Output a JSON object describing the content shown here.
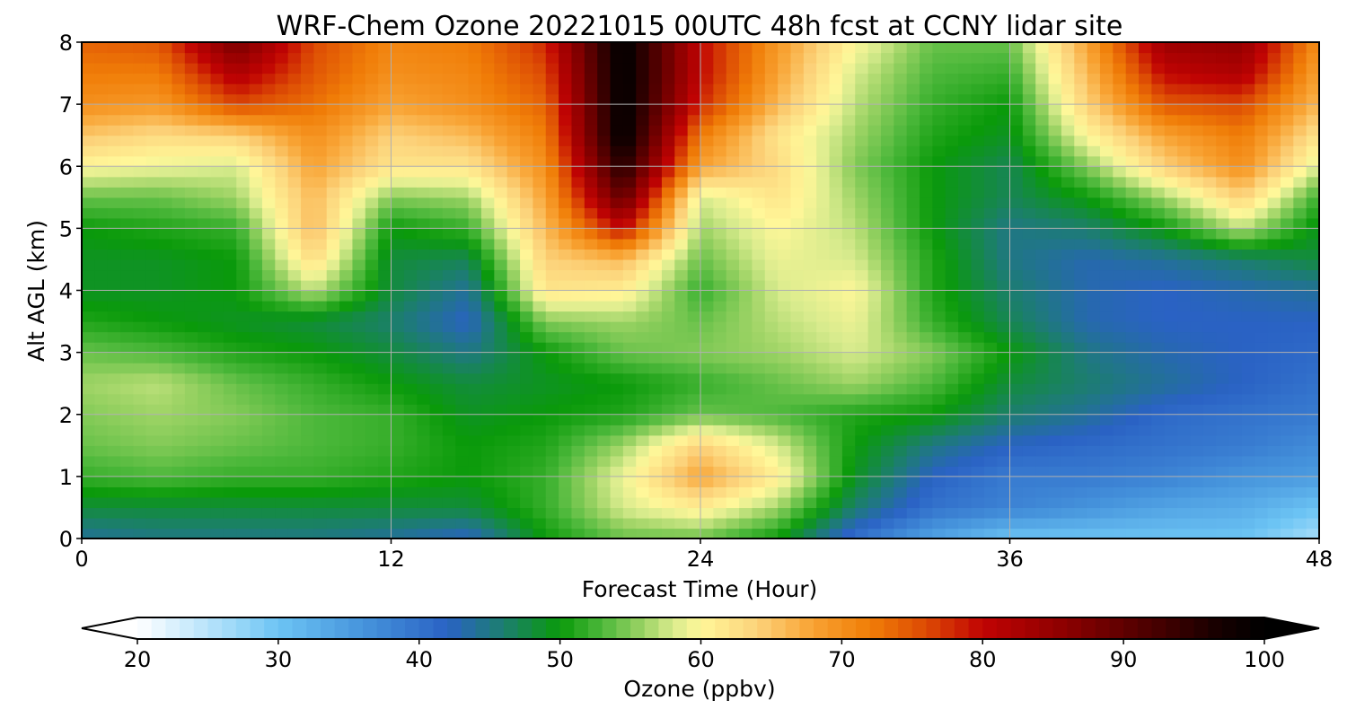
{
  "chart_data": {
    "type": "heatmap",
    "title": "WRF-Chem Ozone  20221015 00UTC 48h fcst at CCNY lidar site",
    "xlabel": "Forecast Time (Hour)",
    "ylabel": "Alt AGL (km)",
    "xlim": [
      0,
      48
    ],
    "ylim": [
      0,
      8
    ],
    "x_ticks": [
      0,
      12,
      24,
      36,
      48
    ],
    "x_tick_labels": [
      "0",
      "12",
      "24",
      "36",
      "48"
    ],
    "y_ticks": [
      0,
      1,
      2,
      3,
      4,
      5,
      6,
      7,
      8
    ],
    "y_tick_labels": [
      "0",
      "1",
      "2",
      "3",
      "4",
      "5",
      "6",
      "7",
      "8"
    ],
    "grid": true,
    "x": [
      0,
      3,
      6,
      9,
      12,
      15,
      18,
      21,
      24,
      27,
      30,
      33,
      36,
      39,
      42,
      45,
      48
    ],
    "y": [
      0,
      0.5,
      1,
      1.5,
      2,
      2.5,
      3,
      3.5,
      4,
      4.5,
      5,
      5.5,
      6,
      6.5,
      7,
      7.5,
      8
    ],
    "z": [
      [
        44,
        45,
        45,
        45,
        44,
        42,
        50,
        54,
        54,
        50,
        40,
        34,
        30,
        30,
        30,
        30,
        26
      ],
      [
        48,
        48,
        48,
        48,
        48,
        48,
        52,
        58,
        61,
        56,
        46,
        40,
        38,
        36,
        34,
        33,
        30
      ],
      [
        52,
        53,
        52,
        52,
        51,
        50,
        52,
        59,
        68,
        61,
        49,
        42,
        39,
        39,
        38,
        36,
        35
      ],
      [
        54,
        55,
        54,
        53,
        52,
        50,
        51,
        56,
        64,
        58,
        50,
        45,
        42,
        41,
        40,
        39,
        37
      ],
      [
        55,
        56,
        55,
        53,
        52,
        49,
        50,
        51,
        54,
        53,
        51,
        50,
        46,
        44,
        41,
        40,
        39
      ],
      [
        56,
        57,
        54,
        52,
        50,
        48,
        49,
        50,
        52,
        54,
        56,
        53,
        48,
        46,
        44,
        42,
        40
      ],
      [
        54,
        53,
        51,
        50,
        48,
        45,
        50,
        54,
        55,
        56,
        58,
        55,
        50,
        45,
        43,
        42,
        41
      ],
      [
        51,
        50,
        49,
        48,
        46,
        42,
        55,
        56,
        54,
        57,
        59,
        52,
        47,
        43,
        42,
        42,
        42
      ],
      [
        49,
        49,
        50,
        57,
        48,
        44,
        62,
        61,
        52,
        58,
        60,
        51,
        46,
        43,
        42,
        43,
        44
      ],
      [
        49,
        49,
        50,
        63,
        48,
        47,
        64,
        66,
        54,
        59,
        58,
        51,
        45,
        43,
        44,
        46,
        48
      ],
      [
        50,
        51,
        52,
        66,
        50,
        52,
        66,
        80,
        56,
        60,
        57,
        50,
        45,
        46,
        50,
        57,
        49
      ],
      [
        54,
        54,
        56,
        66,
        55,
        56,
        68,
        90,
        58,
        62,
        56,
        50,
        47,
        50,
        56,
        64,
        52
      ],
      [
        60,
        59,
        58,
        68,
        62,
        62,
        70,
        96,
        68,
        63,
        55,
        50,
        47,
        55,
        64,
        70,
        58
      ],
      [
        65,
        63,
        64,
        70,
        64,
        66,
        72,
        100,
        72,
        62,
        56,
        51,
        49,
        60,
        68,
        72,
        62
      ],
      [
        70,
        69,
        76,
        73,
        68,
        70,
        74,
        100,
        78,
        66,
        57,
        52,
        50,
        64,
        75,
        76,
        66
      ],
      [
        72,
        72,
        82,
        75,
        70,
        71,
        76,
        100,
        80,
        68,
        58,
        53,
        52,
        66,
        80,
        82,
        68
      ],
      [
        74,
        75,
        88,
        76,
        71,
        72,
        78,
        100,
        80,
        69,
        60,
        54,
        54,
        68,
        84,
        85,
        70
      ]
    ],
    "colorbar": {
      "label": "Ozone  (ppbv)",
      "min": 20,
      "max": 100,
      "ticks": [
        20,
        30,
        40,
        50,
        60,
        70,
        80,
        90,
        100
      ],
      "tick_labels": [
        "20",
        "30",
        "40",
        "50",
        "60",
        "70",
        "80",
        "90",
        "100"
      ],
      "extend": "both",
      "stops": [
        {
          "v": 20,
          "c": "#ffffff"
        },
        {
          "v": 27,
          "c": "#9bd8f8"
        },
        {
          "v": 30,
          "c": "#6cc4f4"
        },
        {
          "v": 36,
          "c": "#4694dc"
        },
        {
          "v": 42,
          "c": "#2a62c4"
        },
        {
          "v": 46,
          "c": "#1c7e6e"
        },
        {
          "v": 50,
          "c": "#0a9a0a"
        },
        {
          "v": 53,
          "c": "#4db83b"
        },
        {
          "v": 56,
          "c": "#9fd466"
        },
        {
          "v": 58,
          "c": "#d8eb8d"
        },
        {
          "v": 60,
          "c": "#fff799"
        },
        {
          "v": 64,
          "c": "#fcd27a"
        },
        {
          "v": 68,
          "c": "#f8a232"
        },
        {
          "v": 72,
          "c": "#f07d07"
        },
        {
          "v": 76,
          "c": "#dc4a04"
        },
        {
          "v": 80,
          "c": "#c00303"
        },
        {
          "v": 86,
          "c": "#8a0000"
        },
        {
          "v": 92,
          "c": "#4a0000"
        },
        {
          "v": 97,
          "c": "#140000"
        },
        {
          "v": 100,
          "c": "#000000"
        }
      ]
    }
  }
}
